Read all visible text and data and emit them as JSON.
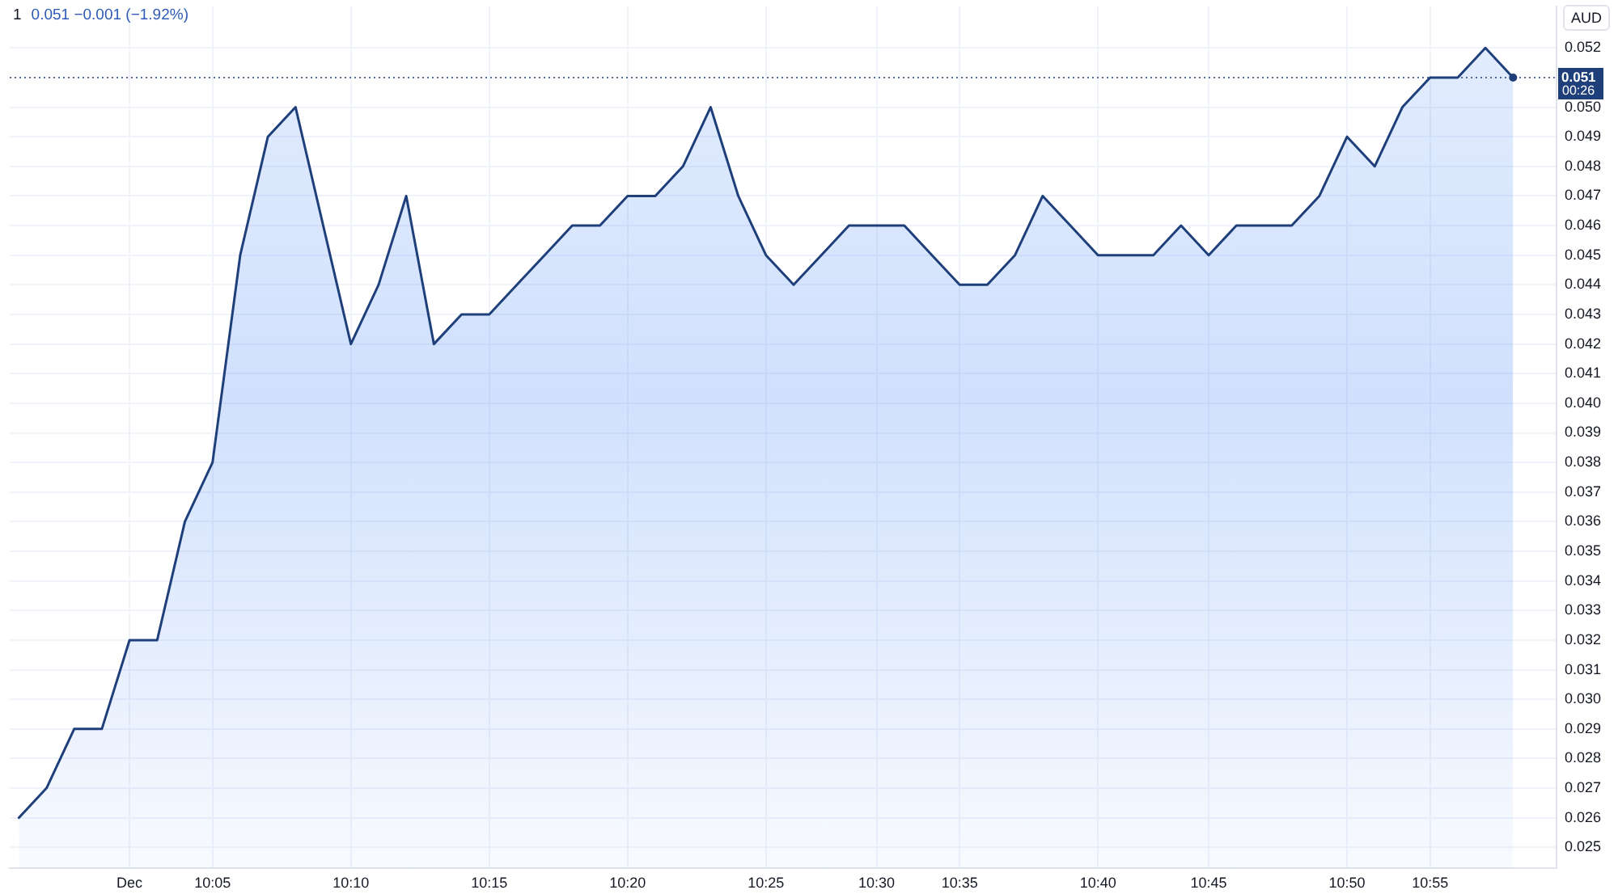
{
  "chart_data": {
    "type": "area",
    "title": "1",
    "subtitle": "0.051 −0.001 (−1.92%)",
    "ylabel": "AUD",
    "annotations": [
      "00:26"
    ],
    "categories": [
      null,
      null,
      null,
      null,
      "Dec",
      null,
      null,
      "10:05",
      null,
      null,
      null,
      null,
      "10:10",
      null,
      null,
      null,
      null,
      "10:15",
      null,
      null,
      null,
      null,
      "10:20",
      null,
      null,
      null,
      null,
      "10:25",
      null,
      null,
      null,
      "10:30",
      null,
      null,
      "10:35",
      null,
      null,
      null,
      null,
      "10:40",
      null,
      null,
      null,
      "10:45",
      null,
      null,
      null,
      null,
      "10:50",
      null,
      null,
      "10:55",
      null,
      null,
      null
    ],
    "values": [
      0.026,
      0.027,
      0.029,
      0.029,
      0.032,
      0.032,
      0.036,
      0.038,
      0.045,
      0.049,
      0.05,
      0.046,
      0.042,
      0.044,
      0.047,
      0.042,
      0.043,
      0.043,
      0.044,
      0.045,
      0.046,
      0.046,
      0.047,
      0.047,
      0.048,
      0.05,
      0.047,
      0.045,
      0.044,
      0.045,
      0.046,
      0.046,
      0.046,
      0.045,
      0.044,
      0.044,
      0.045,
      0.047,
      0.046,
      0.045,
      0.045,
      0.045,
      0.046,
      0.045,
      0.046,
      0.046,
      0.046,
      0.047,
      0.049,
      0.048,
      0.05,
      0.051,
      0.051,
      0.052,
      0.051
    ],
    "color": "#1e3f7a",
    "ylim": [
      0.0243,
      0.0534
    ],
    "yticks": [
      0.025,
      0.026,
      0.027,
      0.028,
      0.029,
      {
        "value": 0.03,
        "label": "0.030"
      },
      0.031,
      0.032,
      0.033,
      0.034,
      0.035,
      0.036,
      0.037,
      0.038,
      0.039,
      {
        "value": 0.04,
        "label": "0.040"
      },
      0.041,
      0.042,
      0.043,
      0.044,
      0.045,
      0.046,
      0.047,
      0.048,
      0.049,
      {
        "value": 0.05,
        "label": "0.050"
      },
      0.052
    ],
    "grid": true,
    "ref_lines": [
      {
        "axis": "y",
        "value": 0.051,
        "label": "0.051",
        "line_style": "dotted",
        "color": "#1e3f7a"
      }
    ]
  }
}
